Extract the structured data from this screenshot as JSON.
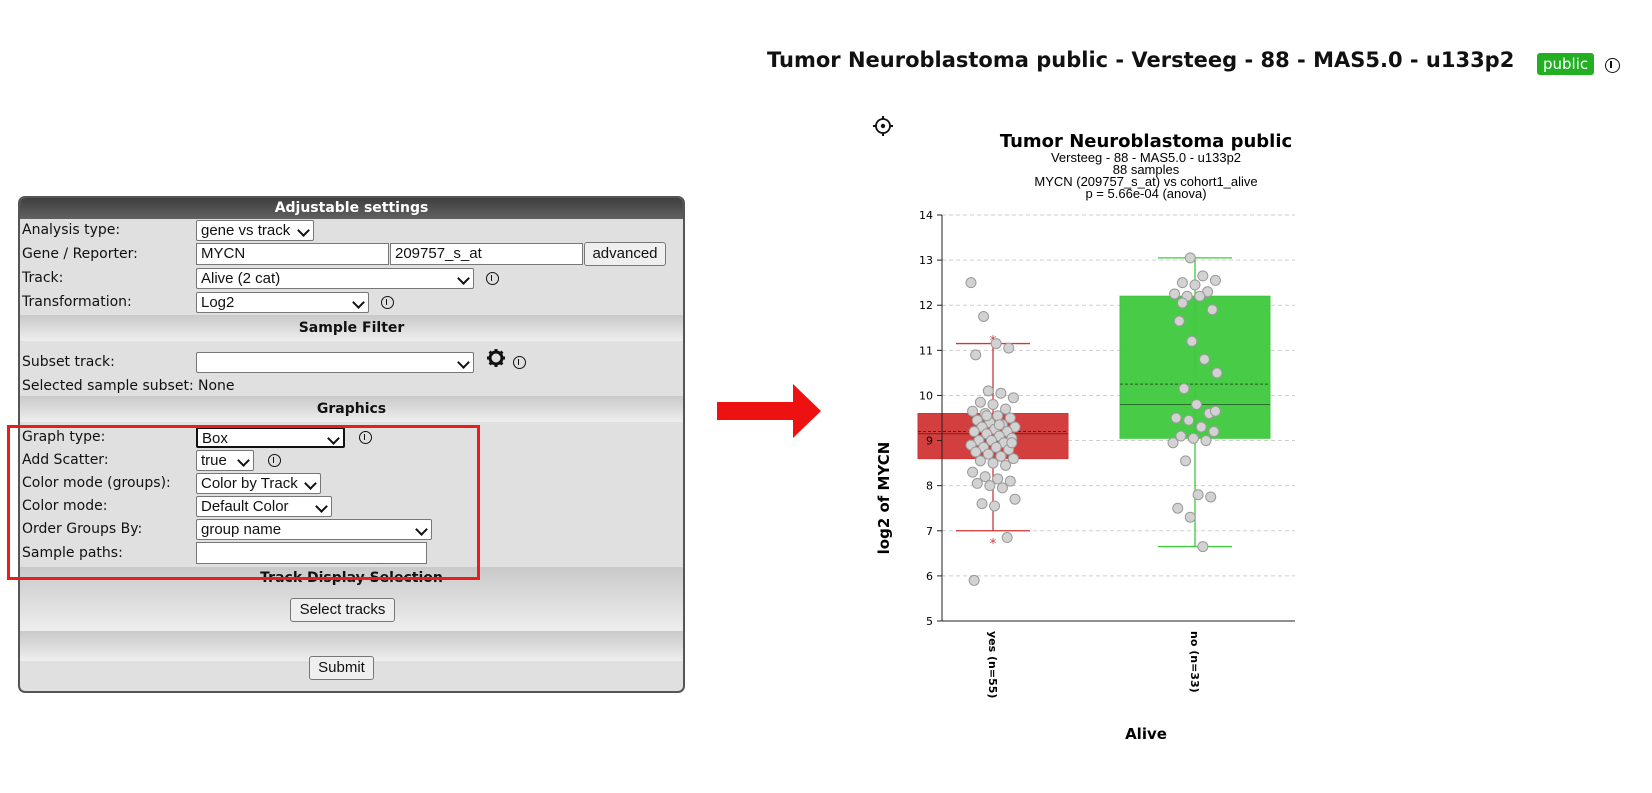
{
  "header": {
    "title": "Tumor Neuroblastoma public - Versteeg - 88 - MAS5.0 - u133p2",
    "badge": "public",
    "colors": {
      "badge": "#22b022"
    }
  },
  "settings": {
    "title": "Adjustable settings",
    "analysis_type": {
      "label": "Analysis type:",
      "value": "gene vs track"
    },
    "gene_reporter": {
      "label": "Gene / Reporter:",
      "gene": "MYCN",
      "reporter": "209757_s_at",
      "advanced_label": "advanced"
    },
    "track": {
      "label": "Track:",
      "value": "Alive (2 cat)"
    },
    "transformation": {
      "label": "Transformation:",
      "value": "Log2"
    },
    "sample_filter": {
      "title": "Sample Filter",
      "subset_track": {
        "label": "Subset track:",
        "value": ""
      },
      "selected_subset": {
        "label": "Selected sample subset:",
        "value": "None"
      }
    },
    "graphics": {
      "title": "Graphics",
      "graph_type": {
        "label": "Graph type:",
        "value": "Box"
      },
      "add_scatter": {
        "label": "Add Scatter:",
        "value": "true"
      },
      "color_mode_groups": {
        "label": "Color mode (groups):",
        "value": "Color by Track"
      },
      "color_mode": {
        "label": "Color mode:",
        "value": "Default Color"
      },
      "order_groups": {
        "label": "Order Groups By:",
        "value": "group name"
      },
      "sample_paths": {
        "label": "Sample paths:",
        "value": ""
      }
    },
    "track_display": {
      "title": "Track Display Selection",
      "button": "Select tracks"
    },
    "submit": "Submit"
  },
  "annotation": {
    "highlight_color": "#ea1c1c",
    "arrow_color": "#ee1111"
  },
  "chart_data": {
    "type": "box",
    "title": "Tumor Neuroblastoma public",
    "subtitle_lines": [
      "Versteeg - 88 - MAS5.0 - u133p2",
      "88 samples",
      "MYCN (209757_s_at) vs cohort1_alive",
      "p = 5.66e-04 (anova)"
    ],
    "xlabel": "Alive",
    "ylabel": "log2 of MYCN",
    "ylim": [
      5,
      14
    ],
    "yticks": [
      5,
      6,
      7,
      8,
      9,
      10,
      11,
      12,
      13,
      14
    ],
    "grid": true,
    "groups": [
      {
        "label": "yes (n=55)",
        "color": "#d13535",
        "whisker_low": 7.0,
        "q1": 8.6,
        "median": 9.15,
        "mean": 9.2,
        "q3": 9.6,
        "whisker_high": 11.15,
        "outliers_marked": [
          11.3,
          6.8
        ],
        "points": [
          12.5,
          11.75,
          11.15,
          11.05,
          10.9,
          10.1,
          10.05,
          9.95,
          9.85,
          9.8,
          9.7,
          9.65,
          9.6,
          9.55,
          9.5,
          9.45,
          9.4,
          9.35,
          9.3,
          9.3,
          9.25,
          9.2,
          9.2,
          9.15,
          9.1,
          9.05,
          9.0,
          9.0,
          8.95,
          8.9,
          8.85,
          8.85,
          8.8,
          8.75,
          8.7,
          8.65,
          8.6,
          8.55,
          8.5,
          8.45,
          8.3,
          8.2,
          8.15,
          8.1,
          8.05,
          8.0,
          7.95,
          7.7,
          7.6,
          7.55,
          6.85,
          5.9,
          9.55,
          9.35,
          8.95
        ]
      },
      {
        "label": "no (n=33)",
        "color": "#3ec93e",
        "whisker_low": 6.65,
        "q1": 9.05,
        "median": 9.8,
        "mean": 10.25,
        "q3": 12.2,
        "whisker_high": 13.05,
        "points": [
          13.05,
          12.65,
          12.55,
          12.5,
          12.45,
          12.3,
          12.25,
          12.2,
          12.2,
          11.9,
          11.65,
          11.2,
          10.8,
          10.5,
          10.15,
          9.8,
          9.6,
          9.5,
          9.45,
          9.3,
          9.2,
          9.1,
          9.05,
          9.0,
          8.95,
          8.55,
          7.8,
          7.75,
          7.5,
          7.3,
          6.65,
          9.65,
          12.05
        ]
      }
    ]
  }
}
